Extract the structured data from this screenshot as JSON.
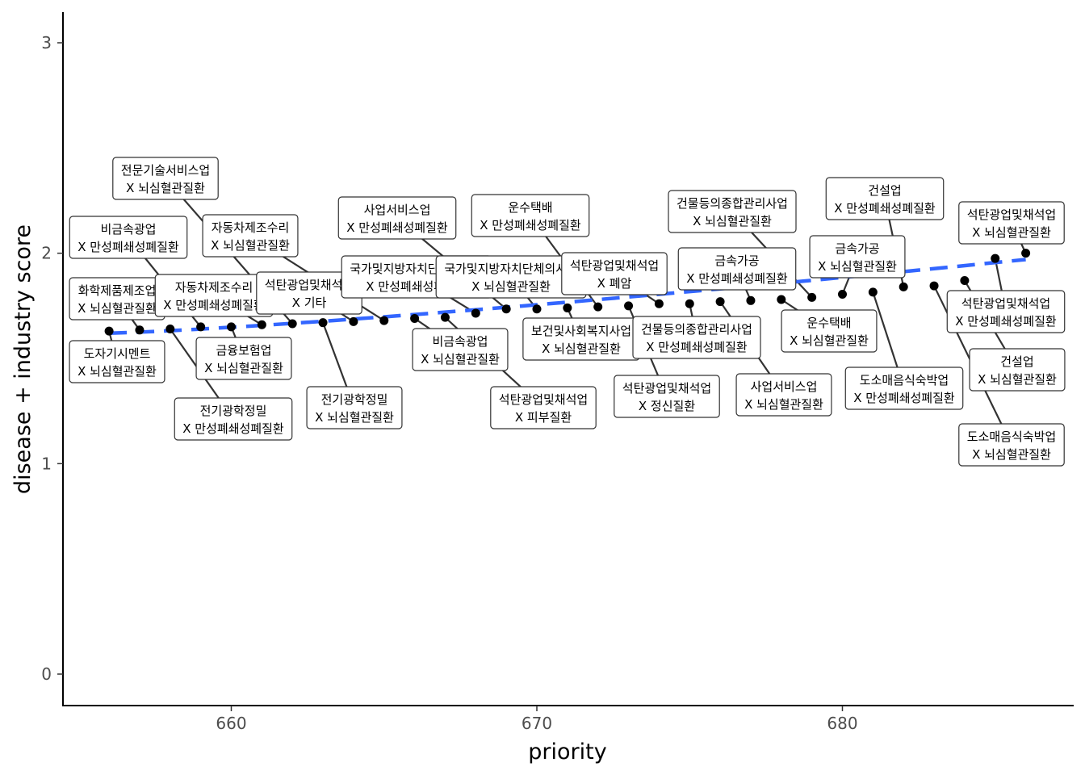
{
  "chart_data": {
    "type": "scatter",
    "xlabel": "priority",
    "ylabel": "disease + industry score",
    "xlim": [
      654.5,
      688.5
    ],
    "ylim": [
      -0.15,
      3.15
    ],
    "x_ticks": [
      660,
      670,
      680
    ],
    "y_ticks": [
      0,
      1,
      2,
      3
    ],
    "grid": false,
    "points": [
      {
        "x": 656,
        "y": 1.63,
        "line1": "도자기시멘트",
        "line2": "X 뇌심혈관질환"
      },
      {
        "x": 657,
        "y": 1.635,
        "line1": "화학제품제조업",
        "line2": "X 뇌심혈관질환"
      },
      {
        "x": 658,
        "y": 1.64,
        "line1": "전기광학정밀",
        "line2": "X 만성폐쇄성폐질환"
      },
      {
        "x": 659,
        "y": 1.65,
        "line1": "비금속광업",
        "line2": "X 만성폐쇄성폐질환"
      },
      {
        "x": 660,
        "y": 1.65,
        "line1": "금융보험업",
        "line2": "X 뇌심혈관질환"
      },
      {
        "x": 661,
        "y": 1.66,
        "line1": "자동차제조수리",
        "line2": "X 만성폐쇄성폐질환"
      },
      {
        "x": 662,
        "y": 1.665,
        "line1": "전문기술서비스업",
        "line2": "X 뇌심혈관질환"
      },
      {
        "x": 663,
        "y": 1.67,
        "line1": "전기광학정밀",
        "line2": "X 뇌심혈관질환"
      },
      {
        "x": 664,
        "y": 1.675,
        "line1": "석탄광업및채석업",
        "line2": "X 기타"
      },
      {
        "x": 665,
        "y": 1.68,
        "line1": "자동차제조수리",
        "line2": "X 뇌심혈관질환"
      },
      {
        "x": 666,
        "y": 1.69,
        "line1": "비금속광업",
        "line2": "X 뇌심혈관질환"
      },
      {
        "x": 667,
        "y": 1.695,
        "line1": "석탄광업및채석업",
        "line2": "X 피부질환"
      },
      {
        "x": 668,
        "y": 1.715,
        "line1": "국가및지방자치단체의사업",
        "line2": "X 만성폐쇄성폐질환"
      },
      {
        "x": 669,
        "y": 1.735,
        "line1": "사업서비스업",
        "line2": "X 만성폐쇄성폐질환"
      },
      {
        "x": 670,
        "y": 1.735,
        "line1": "국가및지방자치단체의사업",
        "line2": "X 뇌심혈관질환"
      },
      {
        "x": 671,
        "y": 1.74,
        "line1": "보건및사회복지사업",
        "line2": "X 뇌심혈관질환"
      },
      {
        "x": 672,
        "y": 1.745,
        "line1": "운수택배",
        "line2": "X 만성폐쇄성폐질환"
      },
      {
        "x": 673,
        "y": 1.75,
        "line1": "석탄광업및채석업",
        "line2": "X 정신질환"
      },
      {
        "x": 674,
        "y": 1.76,
        "line1": "석탄광업및채석업",
        "line2": "X 폐암"
      },
      {
        "x": 675,
        "y": 1.76,
        "line1": "건물등의종합관리사업",
        "line2": "X 만성폐쇄성폐질환"
      },
      {
        "x": 676,
        "y": 1.77,
        "line1": "사업서비스업",
        "line2": "X 뇌심혈관질환"
      },
      {
        "x": 677,
        "y": 1.775,
        "line1": "금속가공",
        "line2": "X 만성폐쇄성폐질환"
      },
      {
        "x": 678,
        "y": 1.78,
        "line1": "운수택배",
        "line2": "X 뇌심혈관질환"
      },
      {
        "x": 679,
        "y": 1.79,
        "line1": "건물등의종합관리사업",
        "line2": "X 뇌심혈관질환"
      },
      {
        "x": 680,
        "y": 1.805,
        "line1": "금속가공",
        "line2": "X 뇌심혈관질환"
      },
      {
        "x": 681,
        "y": 1.815,
        "line1": "도소매음식숙박업",
        "line2": "X 만성폐쇄성폐질환"
      },
      {
        "x": 682,
        "y": 1.84,
        "line1": "건설업",
        "line2": "X 만성폐쇄성폐질환"
      },
      {
        "x": 683,
        "y": 1.845,
        "line1": "도소매음식숙박업",
        "line2": "X 뇌심혈관질환"
      },
      {
        "x": 684,
        "y": 1.87,
        "line1": "건설업",
        "line2": "X 뇌심혈관질환"
      },
      {
        "x": 685,
        "y": 1.975,
        "line1": "석탄광업및채석업",
        "line2": "X 만성폐쇄성폐질환"
      },
      {
        "x": 686,
        "y": 2.0,
        "line1": "석탄광업및채석업",
        "line2": "X 뇌심혈관질환"
      }
    ],
    "trend_line": {
      "style": "dashed",
      "color": "#3366ff",
      "x": [
        656,
        686
      ],
      "y": [
        1.62,
        1.97
      ]
    }
  }
}
